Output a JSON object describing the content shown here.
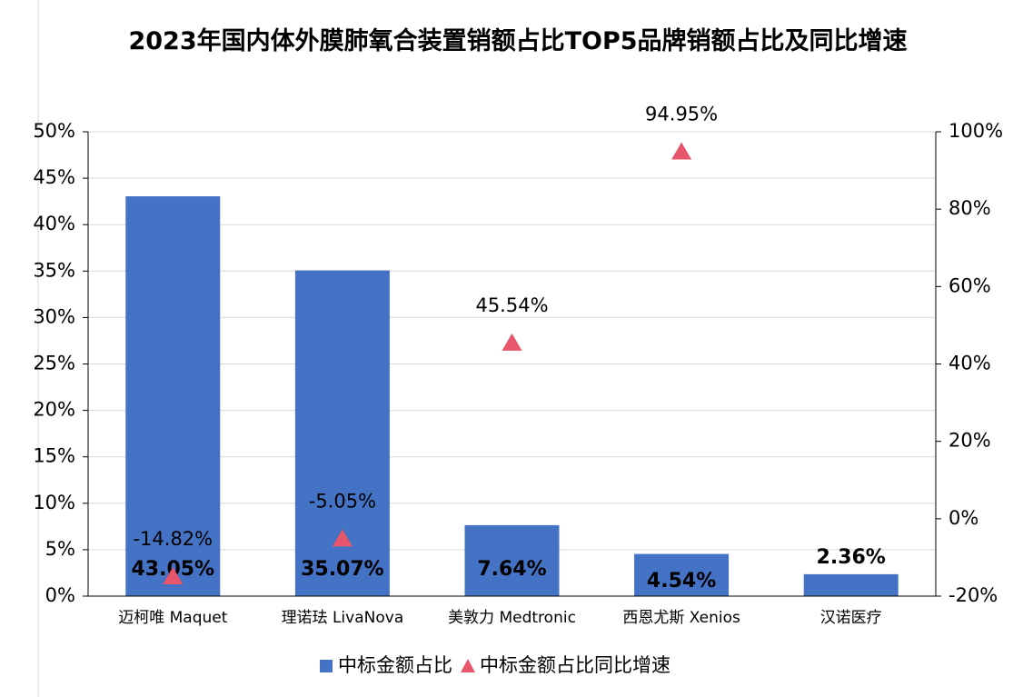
{
  "chart_data": {
    "type": "bar",
    "title": "2023年国内体外膜肺氧合装置销额占比TOP5品牌销额占比及同比增速",
    "categories": [
      "迈柯唯 Maquet",
      "理诺珐 LivaNova",
      "美敦力 Medtronic",
      "西恩尤斯 Xenios",
      "汉诺医疗"
    ],
    "series": [
      {
        "name": "中标金额占比",
        "type": "bar",
        "color": "#4472c4",
        "values": [
          43.05,
          35.07,
          7.64,
          4.54,
          2.36
        ],
        "value_labels": [
          "43.05%",
          "35.07%",
          "7.64%",
          "4.54%",
          "2.36%"
        ]
      },
      {
        "name": "中标金额占比同比增速",
        "type": "scatter",
        "axis": "y2",
        "color": "#e8566b",
        "values": [
          -14.82,
          -5.05,
          45.54,
          94.95,
          null
        ],
        "value_labels": [
          "-14.82%",
          "-5.05%",
          "45.54%",
          "94.95%",
          null
        ]
      }
    ],
    "ylim": [
      0,
      50
    ],
    "yticks": [
      {
        "value": 0,
        "label": "0%"
      },
      {
        "value": 5,
        "label": "5%"
      },
      {
        "value": 10,
        "label": "10%"
      },
      {
        "value": 15,
        "label": "15%"
      },
      {
        "value": 20,
        "label": "20%"
      },
      {
        "value": 25,
        "label": "25%"
      },
      {
        "value": 30,
        "label": "30%"
      },
      {
        "value": 35,
        "label": "35%"
      },
      {
        "value": 40,
        "label": "40%"
      },
      {
        "value": 45,
        "label": "45%"
      },
      {
        "value": 50,
        "label": "50%"
      }
    ],
    "y2lim": [
      -20,
      100
    ],
    "y2ticks": [
      {
        "value": -20,
        "label": "-20%"
      },
      {
        "value": 0,
        "label": "0%"
      },
      {
        "value": 20,
        "label": "20%"
      },
      {
        "value": 40,
        "label": "40%"
      },
      {
        "value": 60,
        "label": "60%"
      },
      {
        "value": 80,
        "label": "80%"
      },
      {
        "value": 100,
        "label": "100%"
      }
    ],
    "grid": true,
    "legend": "bottom"
  }
}
